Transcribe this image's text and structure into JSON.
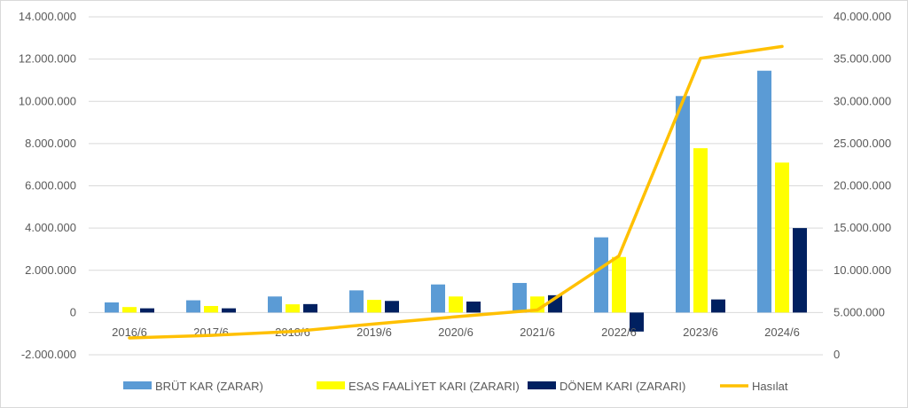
{
  "chart_data": {
    "type": "bar",
    "categories": [
      "2016/6",
      "2017/6",
      "2018/6",
      "2019/6",
      "2020/6",
      "2021/6",
      "2022/6",
      "2023/6",
      "2024/6"
    ],
    "series": [
      {
        "name": "BRÜT KAR (ZARAR)",
        "type": "bar",
        "axis": "left",
        "color": "#5b9bd5",
        "values": [
          480000,
          580000,
          760000,
          1050000,
          1330000,
          1400000,
          3560000,
          10250000,
          11450000
        ]
      },
      {
        "name": "ESAS FAALİYET KARI (ZARARI)",
        "type": "bar",
        "axis": "left",
        "color": "#ffff00",
        "values": [
          260000,
          310000,
          390000,
          600000,
          760000,
          760000,
          2630000,
          7780000,
          7100000
        ]
      },
      {
        "name": "DÖNEM KARI (ZARARI)",
        "type": "bar",
        "axis": "left",
        "color": "#002060",
        "values": [
          200000,
          200000,
          400000,
          550000,
          520000,
          820000,
          -900000,
          620000,
          4000000
        ]
      },
      {
        "name": "Hasılat",
        "type": "line",
        "axis": "right",
        "color": "#ffc000",
        "values": [
          2000000,
          2300000,
          2750000,
          3650000,
          4500000,
          5300000,
          11700000,
          35100000,
          36500000
        ]
      }
    ],
    "y_left": {
      "min": -2000000,
      "max": 14000000,
      "step": 2000000,
      "tick_labels": [
        "-2.000.000",
        "0",
        "2.000.000",
        "4.000.000",
        "6.000.000",
        "8.000.000",
        "10.000.000",
        "12.000.000",
        "14.000.000"
      ]
    },
    "y_right": {
      "min": 0,
      "max": 40000000,
      "step": 5000000,
      "tick_labels": [
        "0",
        "5.000.000",
        "10.000.000",
        "15.000.000",
        "20.000.000",
        "25.000.000",
        "30.000.000",
        "35.000.000",
        "40.000.000"
      ]
    },
    "grid": true,
    "legend_position": "bottom",
    "title": "",
    "xlabel": "",
    "ylabel": ""
  }
}
